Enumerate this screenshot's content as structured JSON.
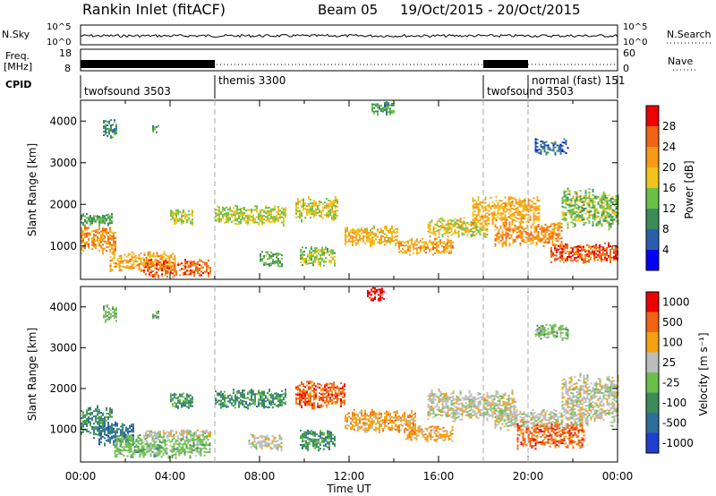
{
  "header": {
    "title": "Rankin Inlet (fitACF)",
    "beam": "Beam 05",
    "date_range": "19/Oct/2015 - 20/Oct/2015"
  },
  "top_panels": {
    "nsky": {
      "label": "N.Sky",
      "left_ticks": [
        "10^5",
        "10^0"
      ],
      "right_label": "N.Search",
      "right_ticks": [
        "10^5",
        "10^0"
      ]
    },
    "freq": {
      "label_lines": [
        "Freq.",
        "[MHz]"
      ],
      "left_ticks": [
        "18",
        "8"
      ],
      "right_label": "Nave",
      "right_ticks": [
        "60",
        "0"
      ]
    },
    "cpid": {
      "label": "CPID",
      "segments": [
        {
          "label": "twofsound 3503",
          "start_hour": 0
        },
        {
          "label": "themis 3300",
          "start_hour": 6
        },
        {
          "label": "twofsound 3503",
          "start_hour": 18
        },
        {
          "label": "normal (fast) 151",
          "start_hour": 20
        }
      ]
    }
  },
  "chart_data": [
    {
      "type": "heatmap",
      "name": "power",
      "ylabel": "Slant Range [km]",
      "xlabel": "",
      "xlim": [
        0,
        24
      ],
      "ylim": [
        200,
        4500
      ],
      "yticks": [
        1000,
        2000,
        3000,
        4000
      ],
      "colorbar": {
        "label": "Power [dB]",
        "ticks": [
          4,
          8,
          12,
          16,
          20,
          24,
          28
        ],
        "colors": [
          "#0000ff",
          "#2b5fae",
          "#3c8c5a",
          "#6cc04a",
          "#f2c31a",
          "#f79a14",
          "#f06414",
          "#ee0000"
        ]
      },
      "blobs": [
        {
          "x0": 0.0,
          "x1": 1.6,
          "y0": 800,
          "y1": 1500,
          "v": 24
        },
        {
          "x0": 0.0,
          "x1": 1.4,
          "y0": 1500,
          "y1": 1800,
          "v": 12
        },
        {
          "x0": 1.3,
          "x1": 4.2,
          "y0": 400,
          "y1": 900,
          "v": 22
        },
        {
          "x0": 2.8,
          "x1": 5.8,
          "y0": 250,
          "y1": 700,
          "v": 27
        },
        {
          "x0": 4.0,
          "x1": 5.0,
          "y0": 1500,
          "y1": 1900,
          "v": 16
        },
        {
          "x0": 6.0,
          "x1": 9.2,
          "y0": 1500,
          "y1": 2000,
          "v": 16
        },
        {
          "x0": 8.0,
          "x1": 9.0,
          "y0": 500,
          "y1": 900,
          "v": 12
        },
        {
          "x0": 9.6,
          "x1": 11.5,
          "y0": 1600,
          "y1": 2200,
          "v": 17
        },
        {
          "x0": 9.8,
          "x1": 11.4,
          "y0": 500,
          "y1": 1000,
          "v": 15
        },
        {
          "x0": 11.8,
          "x1": 14.2,
          "y0": 1000,
          "y1": 1500,
          "v": 20
        },
        {
          "x0": 14.2,
          "x1": 16.6,
          "y0": 800,
          "y1": 1200,
          "v": 22
        },
        {
          "x0": 15.5,
          "x1": 18.2,
          "y0": 1200,
          "y1": 1700,
          "v": 18
        },
        {
          "x0": 17.5,
          "x1": 20.5,
          "y0": 1500,
          "y1": 2200,
          "v": 21
        },
        {
          "x0": 18.5,
          "x1": 21.5,
          "y0": 1000,
          "y1": 1600,
          "v": 24
        },
        {
          "x0": 21.0,
          "x1": 24.0,
          "y0": 600,
          "y1": 1100,
          "v": 28
        },
        {
          "x0": 21.5,
          "x1": 24.0,
          "y0": 1400,
          "y1": 2400,
          "v": 14
        },
        {
          "x0": 20.3,
          "x1": 21.8,
          "y0": 3200,
          "y1": 3600,
          "v": 6
        },
        {
          "x0": 13.0,
          "x1": 14.0,
          "y0": 4150,
          "y1": 4500,
          "v": 10
        },
        {
          "x0": 1.0,
          "x1": 1.6,
          "y0": 3600,
          "y1": 4100,
          "v": 9
        },
        {
          "x0": 3.2,
          "x1": 3.5,
          "y0": 3700,
          "y1": 3950,
          "v": 10
        }
      ]
    },
    {
      "type": "heatmap",
      "name": "velocity",
      "ylabel": "Slant Range [km]",
      "xlabel": "Time UT",
      "xlim": [
        0,
        24
      ],
      "ylim": [
        200,
        4500
      ],
      "yticks": [
        1000,
        2000,
        3000,
        4000
      ],
      "xticks": [
        "00:00",
        "04:00",
        "08:00",
        "12:00",
        "16:00",
        "20:00",
        "00:00"
      ],
      "colorbar": {
        "label": "Velocity [m s⁻¹]",
        "ticks": [
          "1000",
          "500",
          "100",
          "25",
          "-25",
          "-100",
          "-500",
          "-1000"
        ],
        "colors": [
          "#1f3fd0",
          "#2c6f9a",
          "#3c8c5a",
          "#6cc04a",
          "#bcbcbc",
          "#f7a010",
          "#f06414",
          "#ee0000"
        ]
      },
      "blobs": [
        {
          "x0": 0.0,
          "x1": 1.4,
          "y0": 800,
          "y1": 1600,
          "v": 2
        },
        {
          "x0": 0.8,
          "x1": 2.4,
          "y0": 600,
          "y1": 1200,
          "v": 1
        },
        {
          "x0": 1.5,
          "x1": 5.8,
          "y0": 300,
          "y1": 900,
          "v": 3
        },
        {
          "x0": 2.8,
          "x1": 5.8,
          "y0": 800,
          "y1": 1000,
          "v": 4
        },
        {
          "x0": 4.0,
          "x1": 5.0,
          "y0": 1500,
          "y1": 1900,
          "v": 2
        },
        {
          "x0": 6.0,
          "x1": 9.2,
          "y0": 1500,
          "y1": 2000,
          "v": 2
        },
        {
          "x0": 7.5,
          "x1": 9.0,
          "y0": 500,
          "y1": 900,
          "v": 4
        },
        {
          "x0": 9.6,
          "x1": 11.8,
          "y0": 1500,
          "y1": 2200,
          "v": 6
        },
        {
          "x0": 9.8,
          "x1": 11.4,
          "y0": 500,
          "y1": 1000,
          "v": 2
        },
        {
          "x0": 11.8,
          "x1": 15.0,
          "y0": 900,
          "y1": 1500,
          "v": 5
        },
        {
          "x0": 14.5,
          "x1": 16.6,
          "y0": 700,
          "y1": 1100,
          "v": 5
        },
        {
          "x0": 15.5,
          "x1": 19.5,
          "y0": 1200,
          "y1": 2000,
          "v": 4
        },
        {
          "x0": 18.5,
          "x1": 21.5,
          "y0": 1000,
          "y1": 1500,
          "v": 4
        },
        {
          "x0": 19.5,
          "x1": 22.5,
          "y0": 500,
          "y1": 1200,
          "v": 6
        },
        {
          "x0": 21.5,
          "x1": 24.0,
          "y0": 1000,
          "y1": 2400,
          "v": 4
        },
        {
          "x0": 20.3,
          "x1": 21.8,
          "y0": 3200,
          "y1": 3600,
          "v": 3
        },
        {
          "x0": 12.8,
          "x1": 13.6,
          "y0": 4150,
          "y1": 4500,
          "v": 7
        },
        {
          "x0": 1.0,
          "x1": 1.6,
          "y0": 3600,
          "y1": 4100,
          "v": 3
        },
        {
          "x0": 3.2,
          "x1": 3.5,
          "y0": 3700,
          "y1": 3950,
          "v": 3
        }
      ]
    }
  ]
}
